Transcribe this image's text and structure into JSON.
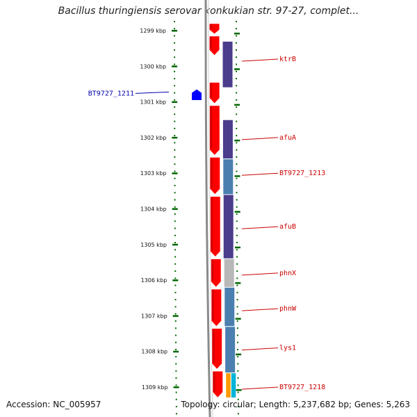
{
  "title": "Bacillus thuringiensis serovar konkukian str. 97-27, complet...",
  "footer": {
    "accession": "Accession: NC_005957",
    "topology": "Topology: circular; Length: 5,237,682 bp; Genes: 5,263"
  },
  "colors": {
    "ring": "#8a8a8a",
    "cds": "#ff0000",
    "purple": "#4b3c8c",
    "steel": "#4a7fb0",
    "gray": "#b8b8b8",
    "orange": "#ff9900",
    "cyan": "#00b4d8",
    "left_gene": "#0000ff",
    "tick": "#006600",
    "label_red": "#cc0000",
    "label_blue": "#0000aa"
  },
  "scale": {
    "ticks": [
      {
        "kbp": 1299,
        "label": "1299 kbp"
      },
      {
        "kbp": 1300,
        "label": "1300 kbp"
      },
      {
        "kbp": 1301,
        "label": "1301 kbp"
      },
      {
        "kbp": 1302,
        "label": "1302 kbp"
      },
      {
        "kbp": 1303,
        "label": "1303 kbp"
      },
      {
        "kbp": 1304,
        "label": "1304 kbp"
      },
      {
        "kbp": 1305,
        "label": "1305 kbp"
      },
      {
        "kbp": 1306,
        "label": "1306 kbp"
      },
      {
        "kbp": 1307,
        "label": "1307 kbp"
      },
      {
        "kbp": 1308,
        "label": "1308 kbp"
      },
      {
        "kbp": 1309,
        "label": "1309 kbp"
      }
    ]
  },
  "cds_blocks": [
    {
      "start_kbp": 1298.8,
      "end_kbp": 1299.1
    },
    {
      "start_kbp": 1299.15,
      "end_kbp": 1299.7
    },
    {
      "start_kbp": 1300.45,
      "end_kbp": 1301.05
    },
    {
      "start_kbp": 1301.1,
      "end_kbp": 1302.5
    },
    {
      "start_kbp": 1302.55,
      "end_kbp": 1303.6
    },
    {
      "start_kbp": 1303.65,
      "end_kbp": 1305.35
    },
    {
      "start_kbp": 1305.4,
      "end_kbp": 1306.2
    },
    {
      "start_kbp": 1306.25,
      "end_kbp": 1307.3
    },
    {
      "start_kbp": 1307.35,
      "end_kbp": 1308.5
    },
    {
      "start_kbp": 1308.55,
      "end_kbp": 1309.3
    }
  ],
  "genes": [
    {
      "name": "ktrB",
      "start_kbp": 1299.3,
      "end_kbp": 1300.6,
      "color": "purple",
      "label_kbp": 1299.8
    },
    {
      "name": "afuA",
      "start_kbp": 1301.5,
      "end_kbp": 1302.6,
      "color": "purple",
      "label_kbp": 1302.0
    },
    {
      "name": "BT9727_1213",
      "start_kbp": 1302.6,
      "end_kbp": 1303.6,
      "color": "steel",
      "label_kbp": 1303.0
    },
    {
      "name": "afuB",
      "start_kbp": 1303.6,
      "end_kbp": 1305.4,
      "color": "purple",
      "label_kbp": 1304.5
    },
    {
      "name": "phnX",
      "start_kbp": 1305.4,
      "end_kbp": 1306.2,
      "color": "gray",
      "label_kbp": 1305.8
    },
    {
      "name": "phnW",
      "start_kbp": 1306.2,
      "end_kbp": 1307.3,
      "color": "steel",
      "label_kbp": 1306.8
    },
    {
      "name": "lys1",
      "start_kbp": 1307.3,
      "end_kbp": 1308.6,
      "color": "steel",
      "label_kbp": 1307.9
    },
    {
      "name": "BT9727_1218",
      "start_kbp": 1308.6,
      "end_kbp": 1309.3,
      "color": "split",
      "label_kbp": 1309.0
    }
  ],
  "left_gene": {
    "name": "BT9727_1211",
    "start_kbp": 1300.65,
    "end_kbp": 1300.95,
    "label_kbp": 1300.8
  }
}
